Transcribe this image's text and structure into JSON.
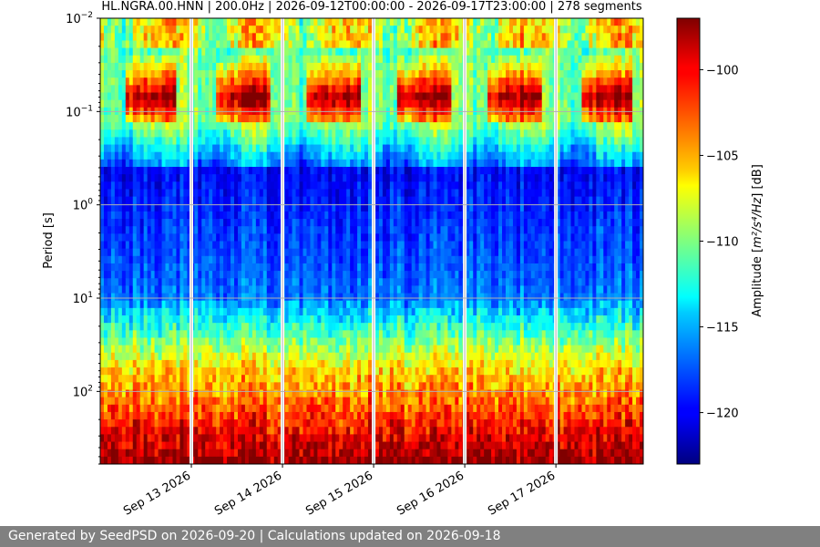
{
  "chart_data": {
    "type": "heatmap",
    "title": "HL.NGRA.00.HNN | 200.0Hz | 2026-09-12T00:00:00 - 2026-09-17T23:00:00 | 278 segments",
    "ylabel": "Period [s]",
    "y_scale": "log",
    "y_inverted": true,
    "ylim": [
      0.01,
      600
    ],
    "y_ticks": [
      {
        "value": 0.01,
        "base": "10",
        "exp": "−2"
      },
      {
        "value": 0.1,
        "base": "10",
        "exp": "−1"
      },
      {
        "value": 1,
        "base": "10",
        "exp": "0"
      },
      {
        "value": 10,
        "base": "10",
        "exp": "1"
      },
      {
        "value": 100,
        "base": "10",
        "exp": "2"
      }
    ],
    "x_start": "2026-09-12T00:00:00",
    "x_end": "2026-09-17T23:00:00",
    "x_ticks": [
      {
        "date": "2026-09-13",
        "label": "Sep 13 2026"
      },
      {
        "date": "2026-09-14",
        "label": "Sep 14 2026"
      },
      {
        "date": "2026-09-15",
        "label": "Sep 15 2026"
      },
      {
        "date": "2026-09-16",
        "label": "Sep 16 2026"
      },
      {
        "date": "2026-09-17",
        "label": "Sep 17 2026"
      }
    ],
    "gaps": [
      "2026-09-13T00:00:00",
      "2026-09-14T00:00:00",
      "2026-09-15T00:00:00",
      "2026-09-16T00:00:00",
      "2026-09-17T00:00:00"
    ],
    "grid": true,
    "colormap": "jet",
    "colorbar": {
      "label_prefix": "Amplitude [",
      "label_units": "m²/s⁴/Hz",
      "label_suffix": "] [dB]",
      "range": [
        -123,
        -97
      ],
      "ticks": [
        -100,
        -105,
        -110,
        -115,
        -120
      ],
      "tick_labels": [
        "−100",
        "−105",
        "−110",
        "−115",
        "−120"
      ]
    },
    "segments": 278
  },
  "footer": {
    "text": "Generated by SeedPSD on 2026-09-20 | Calculations updated on 2026-09-18"
  }
}
